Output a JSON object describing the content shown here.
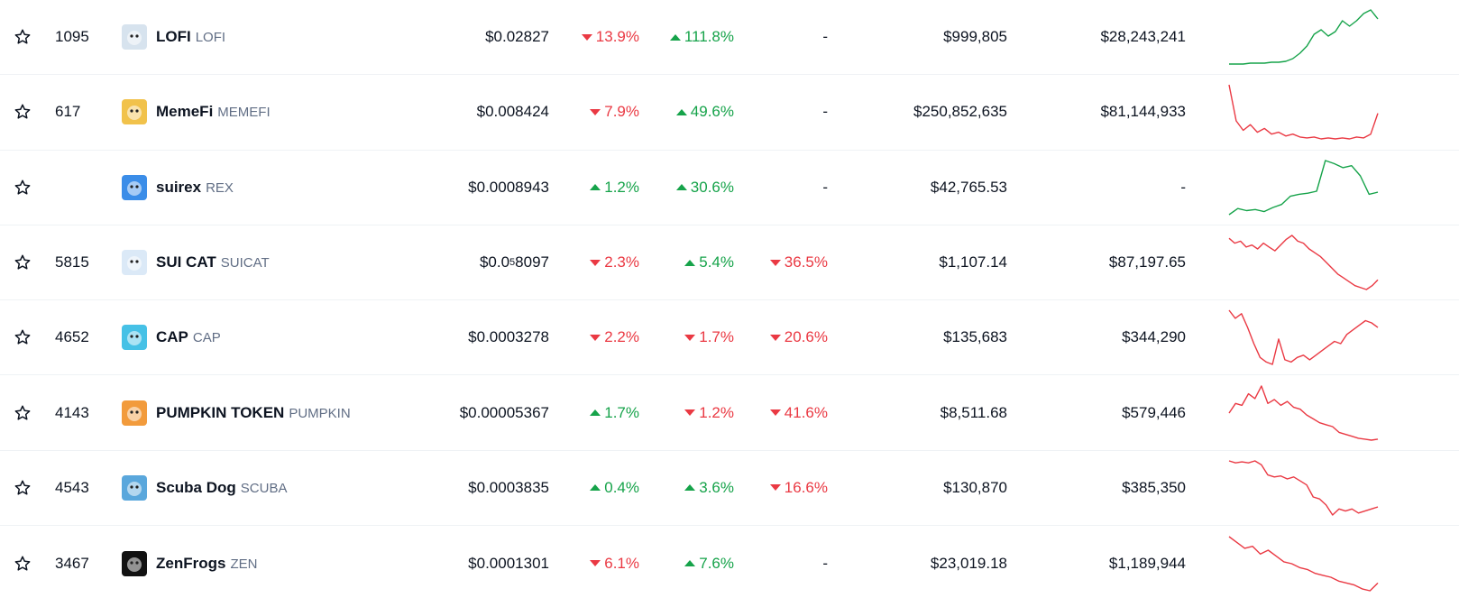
{
  "colors": {
    "up": "#16a34a",
    "down": "#ea3943",
    "text": "#0d1421",
    "muted": "#616e85",
    "divider": "#eff2f5"
  },
  "rows": [
    {
      "rank": "1095",
      "name": "LOFI",
      "symbol": "LOFI",
      "logo_icon": "lofi-logo-icon",
      "logo_bg": "#d7e3ee",
      "price": "$0.02827",
      "pct1": {
        "value": "13.9%",
        "dir": "down"
      },
      "pct2": {
        "value": "111.8%",
        "dir": "up"
      },
      "pct3": {
        "value": "-",
        "dir": "none"
      },
      "volume": "$999,805",
      "market_cap": "$28,243,241",
      "trend": "up",
      "spark": [
        2,
        2,
        2,
        3,
        3,
        3,
        4,
        4,
        5,
        8,
        14,
        22,
        35,
        40,
        33,
        38,
        50,
        44,
        50,
        58,
        62,
        52
      ]
    },
    {
      "rank": "617",
      "name": "MemeFi",
      "symbol": "MEMEFI",
      "logo_icon": "memefi-logo-icon",
      "logo_bg": "#f1c24b",
      "price": "$0.008424",
      "pct1": {
        "value": "7.9%",
        "dir": "down"
      },
      "pct2": {
        "value": "49.6%",
        "dir": "up"
      },
      "pct3": {
        "value": "-",
        "dir": "none"
      },
      "volume": "$250,852,635",
      "market_cap": "$81,144,933",
      "trend": "down",
      "spark": [
        60,
        22,
        12,
        18,
        10,
        14,
        8,
        10,
        6,
        8,
        5,
        4,
        5,
        3,
        4,
        3,
        4,
        3,
        5,
        4,
        8,
        30
      ]
    },
    {
      "rank": "",
      "name": "suirex",
      "symbol": "REX",
      "logo_icon": "suirex-logo-icon",
      "logo_bg": "#3b8de8",
      "price": "$0.0008943",
      "pct1": {
        "value": "1.2%",
        "dir": "up"
      },
      "pct2": {
        "value": "30.6%",
        "dir": "up"
      },
      "pct3": {
        "value": "-",
        "dir": "none"
      },
      "volume": "$42,765.53",
      "market_cap": "-",
      "trend": "up",
      "spark": [
        2,
        8,
        6,
        7,
        5,
        9,
        12,
        20,
        22,
        23,
        25,
        55,
        52,
        48,
        50,
        40,
        22,
        24
      ]
    },
    {
      "rank": "5815",
      "name": "SUI CAT",
      "symbol": "SUICAT",
      "logo_icon": "suicat-logo-icon",
      "logo_bg": "#dbe9f7",
      "price": "$0.0",
      "price_sub": "5",
      "price_tail": "8097",
      "pct1": {
        "value": "2.3%",
        "dir": "down"
      },
      "pct2": {
        "value": "5.4%",
        "dir": "up"
      },
      "pct3": {
        "value": "36.5%",
        "dir": "down"
      },
      "volume": "$1,107.14",
      "market_cap": "$87,197.65",
      "trend": "down",
      "spark": [
        55,
        50,
        52,
        46,
        48,
        44,
        50,
        46,
        42,
        48,
        54,
        58,
        52,
        50,
        44,
        40,
        36,
        30,
        24,
        18,
        14,
        10,
        6,
        4,
        2,
        6,
        12
      ]
    },
    {
      "rank": "4652",
      "name": "CAP",
      "symbol": "CAP",
      "logo_icon": "cap-logo-icon",
      "logo_bg": "#46c1e6",
      "price": "$0.0003278",
      "pct1": {
        "value": "2.2%",
        "dir": "down"
      },
      "pct2": {
        "value": "1.7%",
        "dir": "down"
      },
      "pct3": {
        "value": "20.6%",
        "dir": "down"
      },
      "volume": "$135,683",
      "market_cap": "$344,290",
      "trend": "down",
      "spark": [
        55,
        48,
        52,
        40,
        26,
        14,
        10,
        8,
        30,
        12,
        10,
        14,
        16,
        12,
        16,
        20,
        24,
        28,
        26,
        34,
        38,
        42,
        46,
        44,
        40
      ]
    },
    {
      "rank": "4143",
      "name": "PUMPKIN TOKEN",
      "symbol": "PUMPKIN",
      "logo_icon": "pumpkin-logo-icon",
      "logo_bg": "#f29b3c",
      "price": "$0.00005367",
      "pct1": {
        "value": "1.7%",
        "dir": "up"
      },
      "pct2": {
        "value": "1.2%",
        "dir": "down"
      },
      "pct3": {
        "value": "41.6%",
        "dir": "down"
      },
      "volume": "$8,511.68",
      "market_cap": "$579,446",
      "trend": "down",
      "spark": [
        30,
        40,
        38,
        50,
        45,
        58,
        40,
        44,
        38,
        42,
        36,
        34,
        28,
        24,
        20,
        18,
        16,
        10,
        8,
        6,
        4,
        3,
        2,
        3
      ]
    },
    {
      "rank": "4543",
      "name": "Scuba Dog",
      "symbol": "SCUBA",
      "logo_icon": "scuba-logo-icon",
      "logo_bg": "#5aa7dc",
      "price": "$0.0003835",
      "pct1": {
        "value": "0.4%",
        "dir": "up"
      },
      "pct2": {
        "value": "3.6%",
        "dir": "up"
      },
      "pct3": {
        "value": "16.6%",
        "dir": "down"
      },
      "volume": "$130,870",
      "market_cap": "$385,350",
      "trend": "down",
      "spark": [
        58,
        56,
        57,
        56,
        58,
        54,
        44,
        42,
        43,
        40,
        42,
        38,
        34,
        22,
        20,
        14,
        4,
        10,
        8,
        10,
        6,
        8,
        10,
        12
      ]
    },
    {
      "rank": "3467",
      "name": "ZenFrogs",
      "symbol": "ZEN",
      "logo_icon": "zenfrogs-logo-icon",
      "logo_bg": "#111111",
      "price": "$0.0001301",
      "pct1": {
        "value": "6.1%",
        "dir": "down"
      },
      "pct2": {
        "value": "7.6%",
        "dir": "up"
      },
      "pct3": {
        "value": "-",
        "dir": "none"
      },
      "volume": "$23,019.18",
      "market_cap": "$1,189,944",
      "trend": "down",
      "spark": [
        58,
        52,
        46,
        48,
        40,
        44,
        38,
        32,
        30,
        26,
        24,
        20,
        18,
        16,
        12,
        10,
        8,
        4,
        2,
        10
      ]
    }
  ]
}
